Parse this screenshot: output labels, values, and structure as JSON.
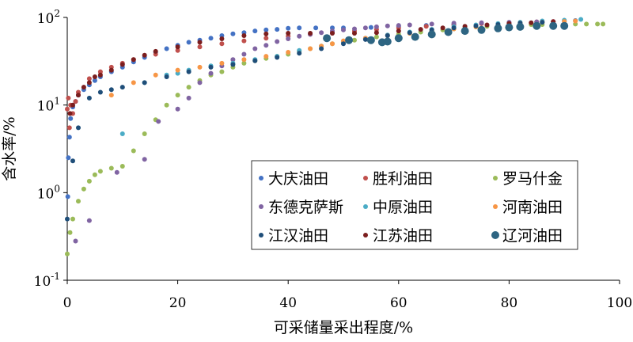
{
  "chart_data": {
    "type": "scatter",
    "xlabel": "可采储量采出程度/%",
    "ylabel": "含水率/%",
    "xlim": [
      0,
      100
    ],
    "ylim": [
      0.1,
      100
    ],
    "yscale": "log",
    "xticks": [
      0,
      20,
      40,
      60,
      80,
      100
    ],
    "yticks": [
      {
        "base": "10",
        "exp": "-1",
        "value": 0.1
      },
      {
        "base": "10",
        "exp": "0",
        "value": 1
      },
      {
        "base": "10",
        "exp": "1",
        "value": 10
      },
      {
        "base": "10",
        "exp": "2",
        "value": 100
      }
    ],
    "grid": false,
    "legend_position": "lower-right inside",
    "series": [
      {
        "name": "大庆油田",
        "color": "#4472C4",
        "size": 3,
        "points": [
          [
            0.1,
            0.9
          ],
          [
            0.2,
            2.5
          ],
          [
            0.4,
            4.3
          ],
          [
            0.6,
            7
          ],
          [
            1,
            9.5
          ],
          [
            1.5,
            11
          ],
          [
            2,
            13
          ],
          [
            3,
            15
          ],
          [
            4,
            17
          ],
          [
            5,
            19
          ],
          [
            6,
            21
          ],
          [
            8,
            24
          ],
          [
            10,
            27
          ],
          [
            12,
            31
          ],
          [
            14,
            35
          ],
          [
            16,
            40
          ],
          [
            18,
            44
          ],
          [
            20,
            48
          ],
          [
            22,
            52
          ],
          [
            24,
            55
          ],
          [
            26,
            58
          ],
          [
            28,
            62
          ],
          [
            30,
            65
          ],
          [
            32,
            67
          ],
          [
            34,
            70
          ],
          [
            36,
            72
          ],
          [
            38,
            73
          ],
          [
            40,
            75
          ],
          [
            42,
            76
          ],
          [
            45,
            76
          ],
          [
            48,
            76
          ],
          [
            50,
            76
          ],
          [
            55,
            77
          ],
          [
            60,
            79
          ],
          [
            65,
            81
          ],
          [
            70,
            83
          ],
          [
            75,
            85
          ],
          [
            80,
            86
          ],
          [
            85,
            88
          ],
          [
            88,
            90
          ],
          [
            90,
            91
          ],
          [
            92,
            92
          ]
        ]
      },
      {
        "name": "胜利油田",
        "color": "#C0504D",
        "size": 3,
        "points": [
          [
            0,
            9
          ],
          [
            0.2,
            12
          ],
          [
            0.4,
            5.5
          ],
          [
            0.6,
            10
          ],
          [
            1,
            8
          ],
          [
            1.5,
            11
          ],
          [
            2,
            14
          ],
          [
            4,
            20
          ],
          [
            6,
            24
          ],
          [
            8,
            27
          ],
          [
            10,
            30
          ],
          [
            12,
            33
          ],
          [
            16,
            38
          ],
          [
            20,
            42
          ],
          [
            24,
            46
          ],
          [
            28,
            50
          ],
          [
            32,
            54
          ],
          [
            36,
            58
          ],
          [
            40,
            61
          ],
          [
            44,
            64
          ],
          [
            48,
            67
          ],
          [
            52,
            70
          ],
          [
            56,
            73
          ],
          [
            60,
            76
          ],
          [
            65,
            79
          ],
          [
            70,
            82
          ],
          [
            75,
            85
          ],
          [
            80,
            87
          ],
          [
            85,
            89
          ],
          [
            88,
            90
          ]
        ]
      },
      {
        "name": "罗马什金",
        "color": "#9BBB59",
        "size": 3,
        "points": [
          [
            0,
            0.2
          ],
          [
            0.5,
            0.35
          ],
          [
            1,
            0.5
          ],
          [
            2,
            0.8
          ],
          [
            3,
            1.1
          ],
          [
            4,
            1.35
          ],
          [
            5,
            1.6
          ],
          [
            6,
            1.75
          ],
          [
            8,
            1.9
          ],
          [
            10,
            2
          ],
          [
            12,
            3
          ],
          [
            14,
            4.7
          ],
          [
            16,
            6.8
          ],
          [
            18,
            10
          ],
          [
            20,
            13
          ],
          [
            22,
            16
          ],
          [
            24,
            19
          ],
          [
            26,
            22
          ],
          [
            28,
            24
          ],
          [
            30,
            27
          ],
          [
            32,
            30
          ],
          [
            34,
            32
          ],
          [
            36,
            34
          ],
          [
            38,
            36
          ],
          [
            40,
            38
          ],
          [
            42,
            41
          ],
          [
            44,
            44
          ],
          [
            46,
            47
          ],
          [
            48,
            50
          ],
          [
            50,
            53
          ],
          [
            52,
            55
          ],
          [
            54,
            57
          ],
          [
            56,
            60
          ],
          [
            58,
            62
          ],
          [
            60,
            64
          ],
          [
            62,
            66
          ],
          [
            64,
            68
          ],
          [
            66,
            70
          ],
          [
            68,
            72
          ],
          [
            70,
            74
          ],
          [
            72,
            76
          ],
          [
            74,
            78
          ],
          [
            76,
            79
          ],
          [
            78,
            80
          ],
          [
            80,
            81
          ],
          [
            82,
            82
          ],
          [
            84,
            83
          ],
          [
            86,
            83
          ],
          [
            88,
            84
          ],
          [
            90,
            84
          ],
          [
            92,
            84
          ],
          [
            94,
            84
          ],
          [
            96,
            84
          ],
          [
            97,
            84
          ]
        ]
      },
      {
        "name": "东德克萨斯",
        "color": "#8064A2",
        "size": 3,
        "points": [
          [
            1.5,
            0.28
          ],
          [
            4,
            0.48
          ],
          [
            9,
            1.7
          ],
          [
            14,
            2.4
          ],
          [
            16.5,
            6.5
          ],
          [
            20,
            9
          ],
          [
            22,
            12
          ],
          [
            24,
            18
          ],
          [
            26,
            23
          ],
          [
            28,
            28
          ],
          [
            30,
            33
          ],
          [
            32,
            38
          ],
          [
            34,
            44
          ],
          [
            36,
            48
          ],
          [
            38,
            53
          ],
          [
            40,
            57
          ],
          [
            42,
            61
          ],
          [
            44,
            64
          ],
          [
            46,
            67
          ],
          [
            48,
            70
          ],
          [
            50,
            72
          ],
          [
            52,
            74
          ],
          [
            54,
            76
          ],
          [
            56,
            78
          ],
          [
            58,
            80
          ],
          [
            60,
            81
          ],
          [
            62,
            82
          ],
          [
            66,
            84
          ],
          [
            70,
            86
          ],
          [
            75,
            87
          ],
          [
            80,
            88
          ],
          [
            85,
            89
          ]
        ]
      },
      {
        "name": "中原油田",
        "color": "#4BACC6",
        "size": 3,
        "points": [
          [
            10,
            4.7
          ],
          [
            14,
            18
          ],
          [
            18,
            22
          ],
          [
            20,
            23
          ],
          [
            22,
            25
          ],
          [
            26,
            28
          ],
          [
            30,
            30
          ],
          [
            34,
            33
          ],
          [
            38,
            36
          ],
          [
            42,
            42
          ],
          [
            46,
            47
          ],
          [
            50,
            52
          ],
          [
            54,
            58
          ],
          [
            58,
            63
          ],
          [
            62,
            68
          ],
          [
            66,
            73
          ],
          [
            70,
            78
          ],
          [
            74,
            82
          ],
          [
            78,
            85
          ],
          [
            82,
            88
          ],
          [
            86,
            91
          ],
          [
            90,
            93
          ],
          [
            93,
            95
          ]
        ]
      },
      {
        "name": "河南油田",
        "color": "#F79646",
        "size": 3,
        "points": [
          [
            8,
            13
          ],
          [
            12,
            18
          ],
          [
            16,
            22
          ],
          [
            20,
            25
          ],
          [
            24,
            27
          ],
          [
            28,
            30
          ],
          [
            32,
            33
          ],
          [
            36,
            36
          ],
          [
            40,
            40
          ],
          [
            44,
            44
          ],
          [
            46,
            47
          ],
          [
            48,
            50
          ],
          [
            50,
            54
          ],
          [
            54,
            58
          ],
          [
            58,
            62
          ],
          [
            62,
            66
          ],
          [
            66,
            70
          ],
          [
            70,
            74
          ],
          [
            74,
            78
          ],
          [
            78,
            82
          ],
          [
            82,
            86
          ],
          [
            86,
            88
          ],
          [
            90,
            90
          ],
          [
            92,
            91
          ]
        ]
      },
      {
        "name": "江汉油田",
        "color": "#1F4E79",
        "size": 3,
        "points": [
          [
            0,
            0.5
          ],
          [
            1,
            2.3
          ],
          [
            2,
            5.5
          ],
          [
            4,
            12
          ],
          [
            6,
            14
          ],
          [
            8,
            15
          ],
          [
            10,
            16
          ],
          [
            14,
            18
          ],
          [
            18,
            21
          ],
          [
            22,
            24
          ],
          [
            26,
            27
          ],
          [
            30,
            29
          ],
          [
            34,
            32
          ],
          [
            38,
            35
          ],
          [
            42,
            39
          ],
          [
            46,
            44
          ],
          [
            50,
            50
          ],
          [
            54,
            56
          ],
          [
            58,
            62
          ],
          [
            62,
            67
          ],
          [
            66,
            72
          ],
          [
            70,
            76
          ],
          [
            74,
            80
          ],
          [
            78,
            83
          ],
          [
            82,
            86
          ],
          [
            86,
            88
          ]
        ]
      },
      {
        "name": "江苏油田",
        "color": "#7B1E1E",
        "size": 3,
        "points": [
          [
            0.5,
            8
          ],
          [
            1,
            10
          ],
          [
            2,
            13
          ],
          [
            3,
            16
          ],
          [
            4,
            18
          ],
          [
            5,
            21
          ],
          [
            6,
            22
          ],
          [
            8,
            25
          ],
          [
            10,
            29
          ],
          [
            12,
            33
          ],
          [
            14,
            37
          ],
          [
            16,
            41
          ],
          [
            20,
            46
          ],
          [
            24,
            52
          ],
          [
            28,
            57
          ],
          [
            32,
            62
          ],
          [
            36,
            65
          ],
          [
            40,
            66
          ],
          [
            44,
            66
          ],
          [
            48,
            66
          ],
          [
            52,
            66
          ],
          [
            56,
            67
          ],
          [
            60,
            70
          ],
          [
            64,
            73
          ],
          [
            68,
            76
          ],
          [
            72,
            79
          ],
          [
            76,
            82
          ],
          [
            80,
            85
          ],
          [
            84,
            87
          ],
          [
            88,
            89
          ]
        ]
      },
      {
        "name": "辽河油田",
        "color": "#2E6582",
        "size": 5,
        "points": [
          [
            47,
            58
          ],
          [
            51,
            55
          ],
          [
            55,
            55
          ],
          [
            57,
            52
          ],
          [
            58,
            53
          ],
          [
            60,
            58
          ],
          [
            63,
            60
          ],
          [
            66,
            64
          ],
          [
            69,
            68
          ],
          [
            72,
            70
          ],
          [
            75,
            72
          ],
          [
            78,
            75
          ],
          [
            80,
            77
          ],
          [
            82,
            78
          ],
          [
            85,
            80
          ],
          [
            88,
            80
          ],
          [
            90,
            80
          ]
        ]
      }
    ],
    "legend_rows": [
      [
        "大庆油田",
        "胜利油田",
        "罗马什金"
      ],
      [
        "东德克萨斯",
        "中原油田",
        "河南油田"
      ],
      [
        "江汉油田",
        "江苏油田",
        "辽河油田"
      ]
    ]
  }
}
